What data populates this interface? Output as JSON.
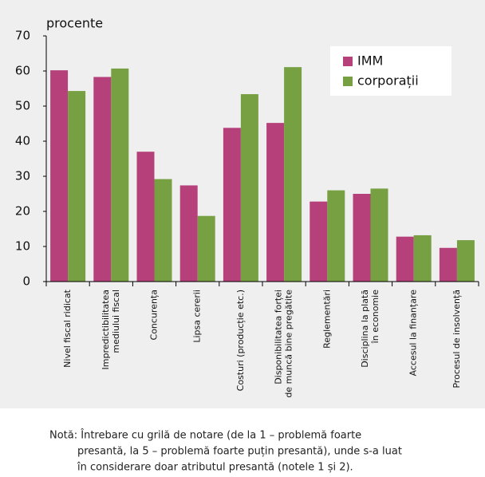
{
  "chart_data": {
    "type": "bar",
    "ylabel": "procente",
    "categories": [
      [
        "Nivel fiscal ridicat"
      ],
      [
        "Impredictibilitatea",
        "mediului fiscal"
      ],
      [
        "Concurența"
      ],
      [
        "Lipsa cererii"
      ],
      [
        "Costuri (producție etc.)"
      ],
      [
        "Disponibilitatea forței",
        "de muncă bine pregătite"
      ],
      [
        "Reglementări"
      ],
      [
        "Disciplina la plată",
        "în economie"
      ],
      [
        "Accesul la finanțare"
      ],
      [
        "Procesul de insolvență"
      ]
    ],
    "series": [
      {
        "name": "IMM",
        "color": "#b5407a",
        "values": [
          60.2,
          58.3,
          37,
          27.4,
          43.8,
          45.2,
          22.8,
          25,
          12.8,
          9.6
        ]
      },
      {
        "name": "corporații",
        "color": "#77a042",
        "values": [
          54.3,
          60.7,
          29.2,
          18.7,
          53.4,
          61.1,
          26,
          26.5,
          13.2,
          11.8
        ]
      }
    ],
    "ylim": [
      0,
      70
    ],
    "yticks": [
      0,
      10,
      20,
      30,
      40,
      50,
      60,
      70
    ],
    "legend": "upper-right",
    "note": [
      "Notă: Întrebare cu grilă de notare (de la 1 – problemă foarte",
      "presantă, la 5 – problemă  foarte puțin presantă),  unde s-a luat",
      "în considerare doar atributul presantă (notele 1 și 2)."
    ]
  }
}
